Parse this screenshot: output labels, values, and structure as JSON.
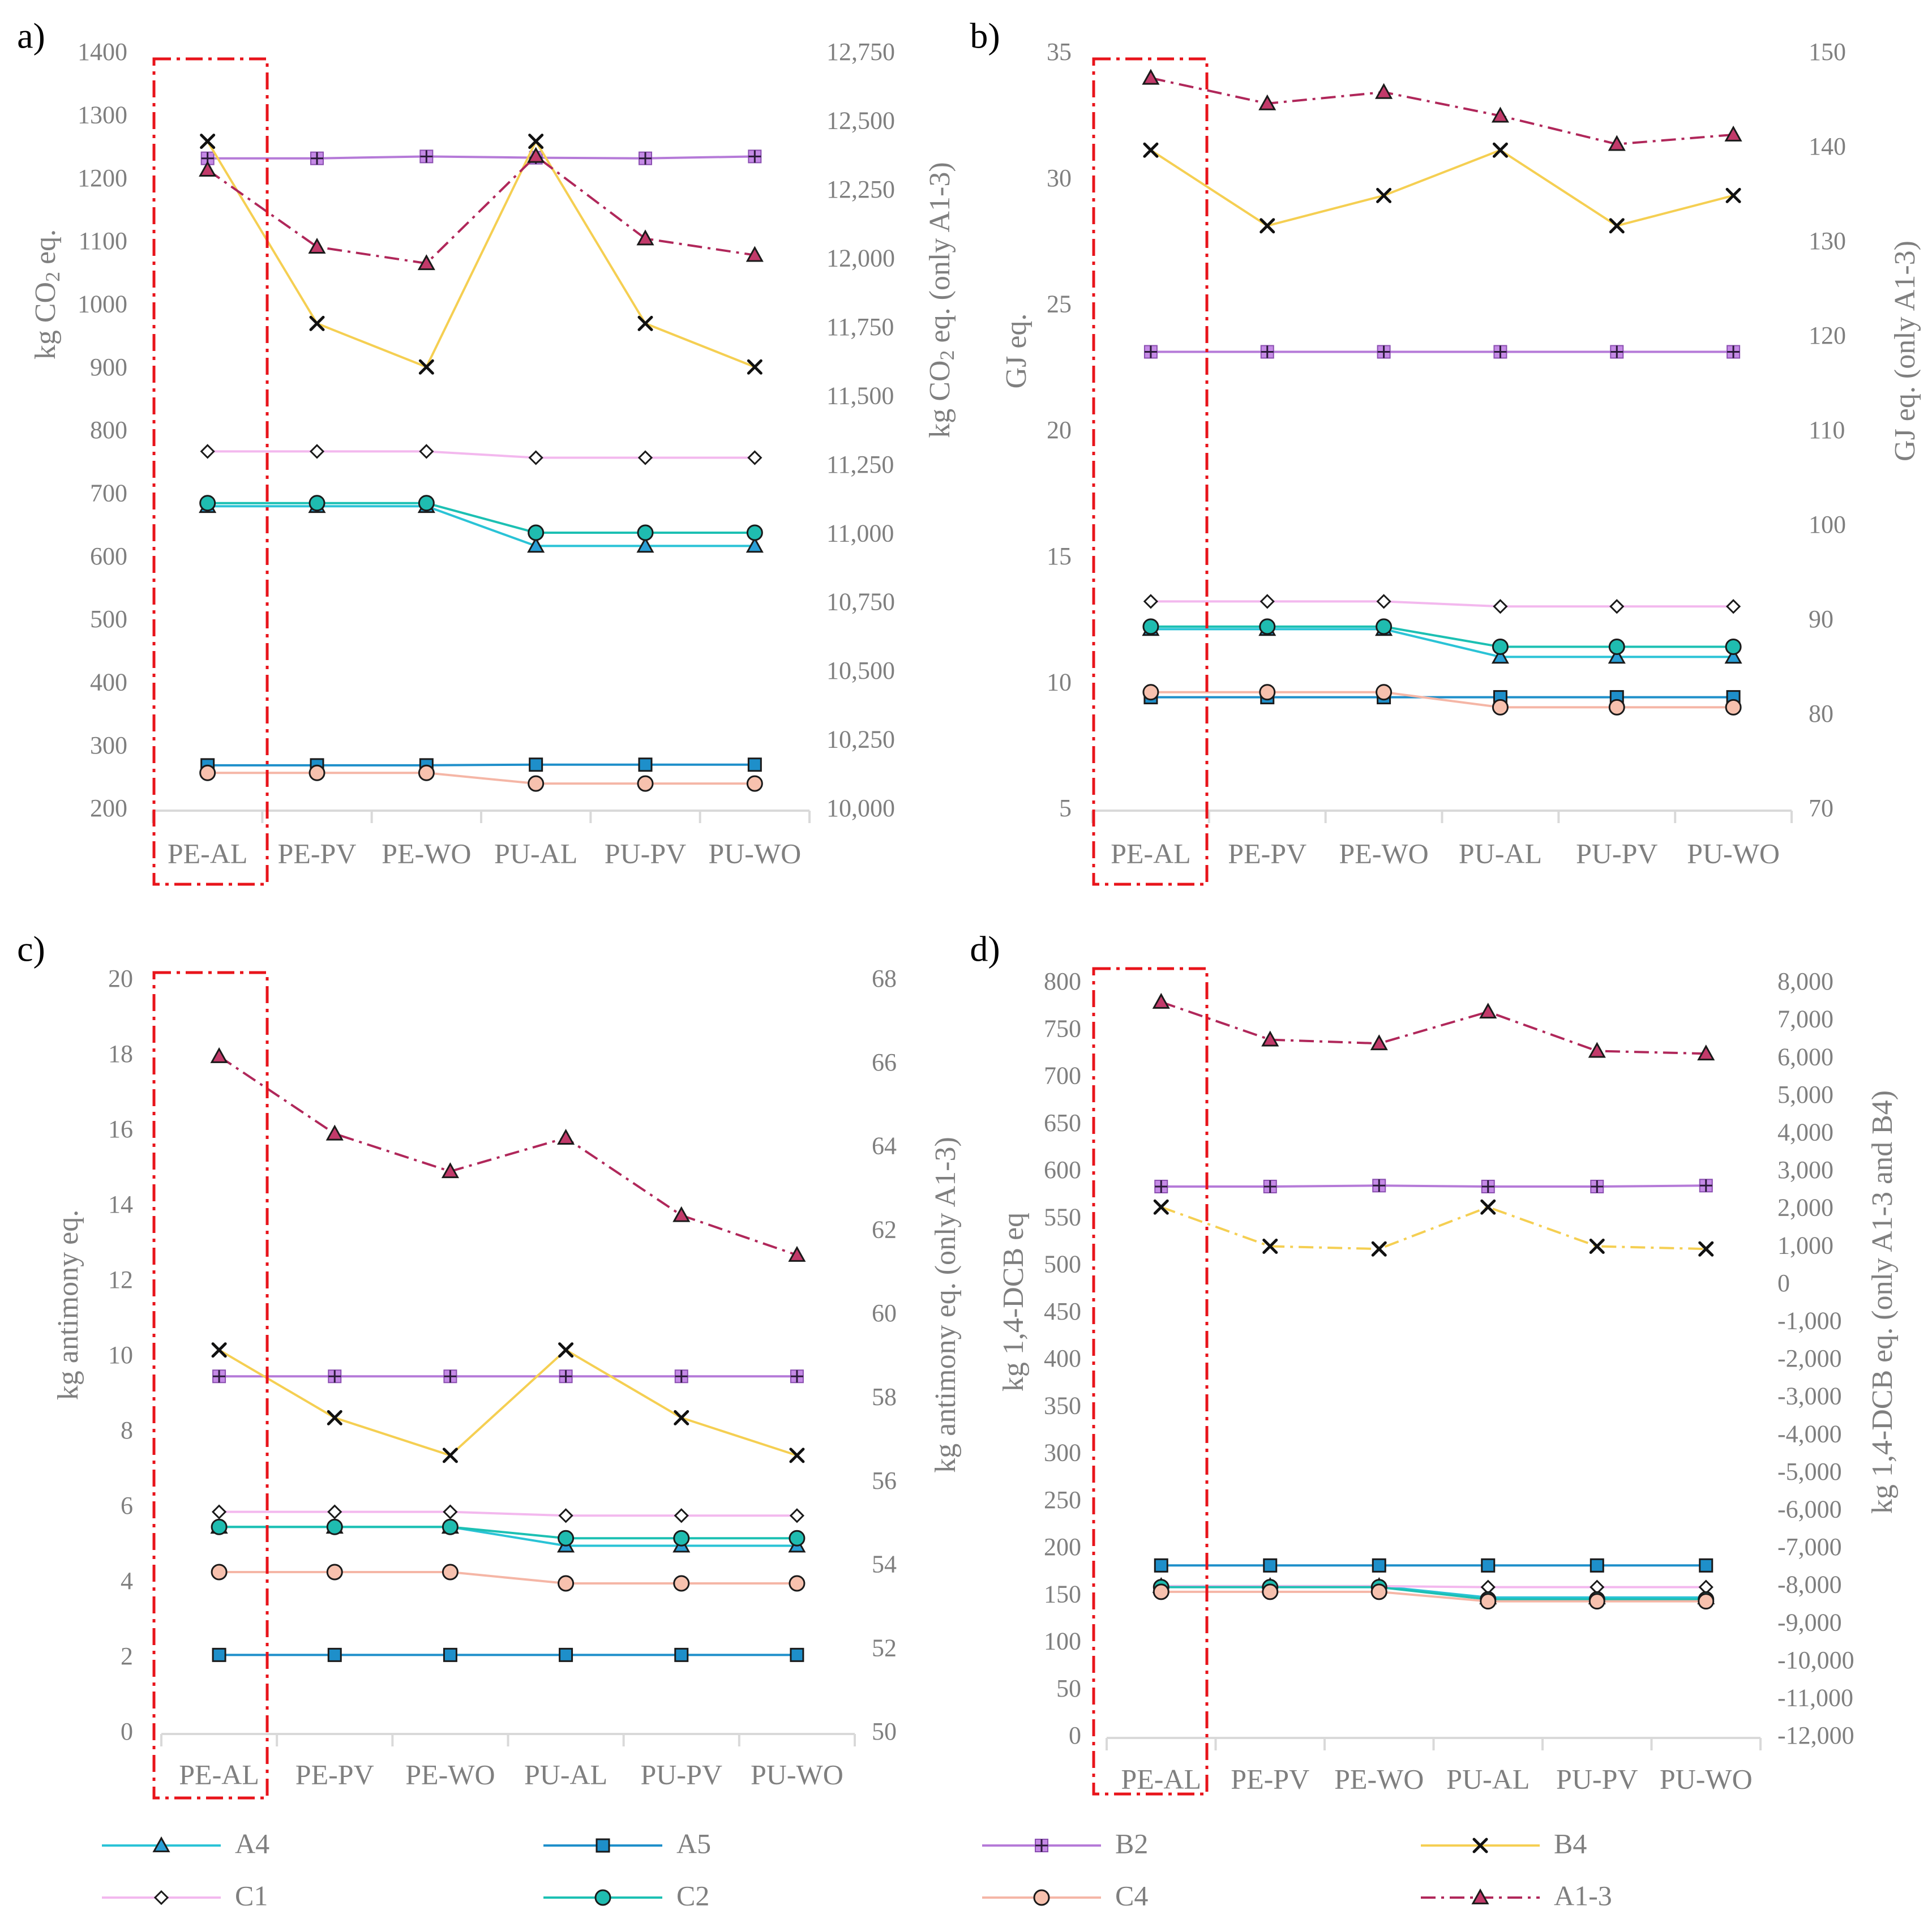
{
  "figure": {
    "legend": [
      {
        "key": "A4",
        "label": "A4"
      },
      {
        "key": "A5",
        "label": "A5"
      },
      {
        "key": "B2",
        "label": "B2"
      },
      {
        "key": "B4",
        "label": "B4"
      },
      {
        "key": "C1",
        "label": "C1"
      },
      {
        "key": "C2",
        "label": "C2"
      },
      {
        "key": "C4",
        "label": "C4"
      },
      {
        "key": "A13",
        "label": "A1-3"
      }
    ],
    "series_styles": {
      "A4": {
        "line": "#2ac3d6",
        "marker": "triangle",
        "fill": "#2a9fd6",
        "dash": "solid"
      },
      "A5": {
        "line": "#1e8fca",
        "marker": "square",
        "fill": "#1e8fca",
        "dash": "solid"
      },
      "B2": {
        "line": "#b57ad8",
        "marker": "plus-square",
        "fill": "#c58ae6",
        "dash": "solid"
      },
      "B4": {
        "line": "#f5cf52",
        "marker": "x",
        "fill": "#f5cf52",
        "dash": "solid"
      },
      "C1": {
        "line": "#f3b8ee",
        "marker": "diamond",
        "fill": "#ffffff",
        "dash": "solid"
      },
      "C2": {
        "line": "#1cc0b3",
        "marker": "circle",
        "fill": "#1fbcb0",
        "dash": "solid"
      },
      "C4": {
        "line": "#f5b6a6",
        "marker": "circle",
        "fill": "#f7c1ae",
        "dash": "solid"
      },
      "A13": {
        "line": "#b0275a",
        "marker": "triangle",
        "fill": "#c23a6a",
        "dash": "dashdot"
      }
    },
    "highlight_color": "#e8141b",
    "axis_text_color": "#7f7f7f",
    "grid_color": "#d9d9d9"
  },
  "chart_data": [
    {
      "panel_label": "a)",
      "type": "line",
      "categories": [
        "PE-AL",
        "PE-PV",
        "PE-WO",
        "PU-AL",
        "PU-PV",
        "PU-WO"
      ],
      "highlight_category": "PE-AL",
      "ylabel_left": {
        "pre": "kg CO",
        "sub": "2",
        "post": " eq."
      },
      "ylabel_right": {
        "pre": "kg CO",
        "sub": "2",
        "post": " eq. (only A1-3)"
      },
      "ylim_left": [
        200,
        1400
      ],
      "yticks_left": [
        "200",
        "300",
        "400",
        "500",
        "600",
        "700",
        "800",
        "900",
        "1000",
        "1100",
        "1200",
        "1300",
        "1400"
      ],
      "ylim_right": [
        10000,
        12750
      ],
      "yticks_right": [
        "10,000",
        "10,250",
        "10,500",
        "10,750",
        "11,000",
        "11,250",
        "11,500",
        "11,750",
        "12,000",
        "12,250",
        "12,500",
        "12,750"
      ],
      "series": [
        {
          "key": "A4",
          "axis": "left",
          "values": [
            683,
            683,
            683,
            620,
            620,
            620
          ]
        },
        {
          "key": "A5",
          "axis": "left",
          "values": [
            272,
            272,
            272,
            273,
            273,
            273
          ]
        },
        {
          "key": "B2",
          "axis": "left",
          "values": [
            1235,
            1235,
            1238,
            1236,
            1235,
            1238
          ]
        },
        {
          "key": "B4",
          "axis": "left",
          "values": [
            1262,
            973,
            904,
            1262,
            973,
            904
          ]
        },
        {
          "key": "C1",
          "axis": "left",
          "values": [
            770,
            770,
            770,
            760,
            760,
            760
          ]
        },
        {
          "key": "C2",
          "axis": "left",
          "values": [
            688,
            688,
            688,
            641,
            641,
            641
          ]
        },
        {
          "key": "C4",
          "axis": "left",
          "values": [
            260,
            260,
            260,
            243,
            243,
            243
          ]
        },
        {
          "key": "A13",
          "axis": "right",
          "values": [
            12330,
            12050,
            11990,
            12380,
            12080,
            12020
          ]
        }
      ]
    },
    {
      "panel_label": "b)",
      "type": "line",
      "categories": [
        "PE-AL",
        "PE-PV",
        "PE-WO",
        "PU-AL",
        "PU-PV",
        "PU-WO"
      ],
      "highlight_category": "PE-AL",
      "ylabel_left": {
        "pre": "GJ eq.",
        "sub": "",
        "post": ""
      },
      "ylabel_right": {
        "pre": "GJ eq. (only A1-3)",
        "sub": "",
        "post": ""
      },
      "ylim_left": [
        5,
        35
      ],
      "yticks_left": [
        "5",
        "10",
        "15",
        "20",
        "25",
        "30",
        "35"
      ],
      "ylim_right": [
        70,
        150
      ],
      "yticks_right": [
        "70",
        "80",
        "90",
        "100",
        "110",
        "120",
        "130",
        "140",
        "150"
      ],
      "series": [
        {
          "key": "A4",
          "axis": "left",
          "values": [
            12.2,
            12.2,
            12.2,
            11.1,
            11.1,
            11.1
          ]
        },
        {
          "key": "A5",
          "axis": "left",
          "values": [
            9.5,
            9.5,
            9.5,
            9.5,
            9.5,
            9.5
          ]
        },
        {
          "key": "B2",
          "axis": "left",
          "values": [
            23.2,
            23.2,
            23.2,
            23.2,
            23.2,
            23.2
          ]
        },
        {
          "key": "B4",
          "axis": "left",
          "values": [
            31.2,
            28.2,
            29.4,
            31.2,
            28.2,
            29.4
          ]
        },
        {
          "key": "C1",
          "axis": "left",
          "values": [
            13.3,
            13.3,
            13.3,
            13.1,
            13.1,
            13.1
          ]
        },
        {
          "key": "C2",
          "axis": "left",
          "values": [
            12.3,
            12.3,
            12.3,
            11.5,
            11.5,
            11.5
          ]
        },
        {
          "key": "C4",
          "axis": "left",
          "values": [
            9.7,
            9.7,
            9.7,
            9.1,
            9.1,
            9.1
          ]
        },
        {
          "key": "A13",
          "axis": "right",
          "values": [
            147.5,
            144.8,
            146,
            143.5,
            140.5,
            141.5
          ]
        }
      ]
    },
    {
      "panel_label": "c)",
      "type": "line",
      "categories": [
        "PE-AL",
        "PE-PV",
        "PE-WO",
        "PU-AL",
        "PU-PV",
        "PU-WO"
      ],
      "highlight_category": "PE-AL",
      "ylabel_left": {
        "pre": "kg antimony eq.",
        "sub": "",
        "post": ""
      },
      "ylabel_right": {
        "pre": "kg antimony eq. (only A1-3)",
        "sub": "",
        "post": ""
      },
      "ylim_left": [
        0,
        20
      ],
      "yticks_left": [
        "0",
        "2",
        "4",
        "6",
        "8",
        "10",
        "12",
        "14",
        "16",
        "18",
        "20"
      ],
      "ylim_right": [
        50,
        68
      ],
      "yticks_right": [
        "50",
        "52",
        "54",
        "56",
        "58",
        "60",
        "62",
        "64",
        "66",
        "68"
      ],
      "series": [
        {
          "key": "A4",
          "axis": "left",
          "values": [
            5.5,
            5.5,
            5.5,
            5.0,
            5.0,
            5.0
          ]
        },
        {
          "key": "A5",
          "axis": "left",
          "values": [
            2.1,
            2.1,
            2.1,
            2.1,
            2.1,
            2.1
          ]
        },
        {
          "key": "B2",
          "axis": "left",
          "values": [
            9.5,
            9.5,
            9.5,
            9.5,
            9.5,
            9.5
          ]
        },
        {
          "key": "B4",
          "axis": "left",
          "values": [
            10.2,
            8.4,
            7.4,
            10.2,
            8.4,
            7.4
          ]
        },
        {
          "key": "C1",
          "axis": "left",
          "values": [
            5.9,
            5.9,
            5.9,
            5.8,
            5.8,
            5.8
          ]
        },
        {
          "key": "C2",
          "axis": "left",
          "values": [
            5.5,
            5.5,
            5.5,
            5.2,
            5.2,
            5.2
          ]
        },
        {
          "key": "C4",
          "axis": "left",
          "values": [
            4.3,
            4.3,
            4.3,
            4.0,
            4.0,
            4.0
          ]
        },
        {
          "key": "A13",
          "axis": "right",
          "values": [
            66.2,
            64.35,
            63.45,
            64.25,
            62.4,
            61.45
          ]
        }
      ]
    },
    {
      "panel_label": "d)",
      "type": "line",
      "categories": [
        "PE-AL",
        "PE-PV",
        "PE-WO",
        "PU-AL",
        "PU-PV",
        "PU-WO"
      ],
      "highlight_category": "PE-AL",
      "ylabel_left": {
        "pre": "kg 1,4-DCB eq",
        "sub": "",
        "post": ""
      },
      "ylabel_right": {
        "pre": "kg 1,4-DCB eq. (only A1-3 and B4)",
        "sub": "",
        "post": ""
      },
      "ylim_left": [
        0,
        800
      ],
      "yticks_left": [
        "0",
        "50",
        "100",
        "150",
        "200",
        "250",
        "300",
        "350",
        "400",
        "450",
        "500",
        "550",
        "600",
        "650",
        "700",
        "750",
        "800"
      ],
      "ylim_right": [
        -12000,
        8000
      ],
      "yticks_right": [
        "-12,000",
        "-11,000",
        "-10,000",
        "-9,000",
        "-8,000",
        "-7,000",
        "-6,000",
        "-5,000",
        "-4,000",
        "-3,000",
        "-2,000",
        "-1,000",
        "0",
        "1,000",
        "2,000",
        "3,000",
        "4,000",
        "5,000",
        "6,000",
        "7,000",
        "8,000"
      ],
      "series": [
        {
          "key": "A4",
          "axis": "left",
          "values": [
            161,
            161,
            161,
            149,
            149,
            149
          ]
        },
        {
          "key": "A5",
          "axis": "left",
          "values": [
            183,
            183,
            183,
            183,
            183,
            183
          ]
        },
        {
          "key": "B2",
          "axis": "left",
          "values": [
            585,
            585,
            586,
            585,
            585,
            586
          ]
        },
        {
          "key": "B4",
          "axis": "right",
          "dash": "dashdot",
          "values": [
            2080,
            1040,
            970,
            2080,
            1040,
            970
          ]
        },
        {
          "key": "C1",
          "axis": "left",
          "values": [
            161,
            161,
            161,
            160,
            160,
            160
          ]
        },
        {
          "key": "C2",
          "axis": "left",
          "values": [
            160,
            160,
            160,
            147,
            147,
            147
          ]
        },
        {
          "key": "C4",
          "axis": "left",
          "values": [
            155,
            155,
            155,
            145,
            145,
            145
          ]
        },
        {
          "key": "A13",
          "axis": "right",
          "values": [
            7520,
            6520,
            6420,
            7260,
            6220,
            6150
          ]
        }
      ]
    }
  ]
}
